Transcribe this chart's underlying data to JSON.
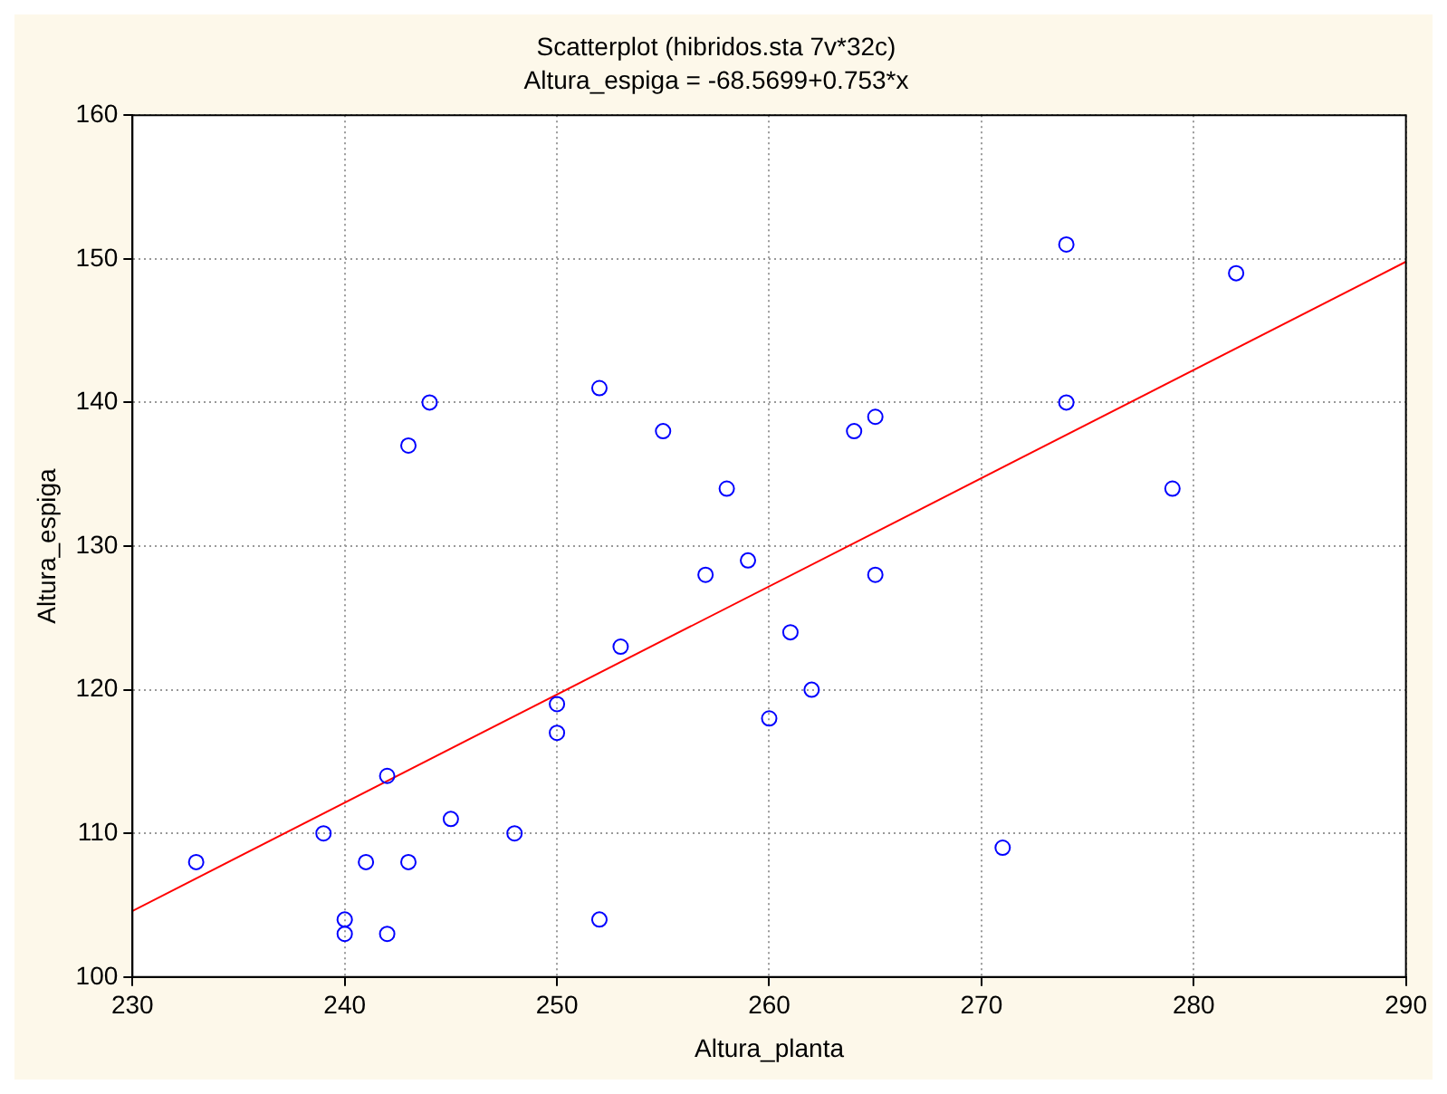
{
  "chart_data": {
    "type": "scatter",
    "title": "Scatterplot (hibridos.sta 7v*32c)",
    "subtitle": "Altura_espiga = -68.5699+0.753*x",
    "xlabel": "Altura_planta",
    "ylabel": "Altura_espiga",
    "xlim": [
      230,
      290
    ],
    "xticks": [
      230,
      240,
      250,
      260,
      270,
      280,
      290
    ],
    "ylim": [
      100,
      160
    ],
    "yticks": [
      100,
      110,
      120,
      130,
      140,
      150,
      160
    ],
    "grid": true,
    "marker": "circle",
    "series": [
      {
        "type": "scatter",
        "color": "#0000ff",
        "x": [
          233,
          239,
          240,
          240,
          241,
          242,
          242,
          243,
          243,
          244,
          245,
          248,
          250,
          250,
          252,
          252,
          253,
          255,
          257,
          258,
          259,
          260,
          261,
          262,
          264,
          265,
          265,
          271,
          274,
          274,
          279,
          282
        ],
        "values": [
          108,
          110,
          104,
          103,
          108,
          114,
          103,
          108,
          137,
          140,
          111,
          110,
          119,
          117,
          141,
          104,
          123,
          138,
          128,
          134,
          129,
          118,
          124,
          120,
          138,
          139,
          128,
          109,
          151,
          140,
          134,
          149
        ]
      },
      {
        "type": "line",
        "color": "#ff0000",
        "line_style": "solid",
        "marker": "none",
        "x": [
          230,
          290
        ],
        "values": [
          104.6,
          149.8
        ]
      }
    ]
  }
}
